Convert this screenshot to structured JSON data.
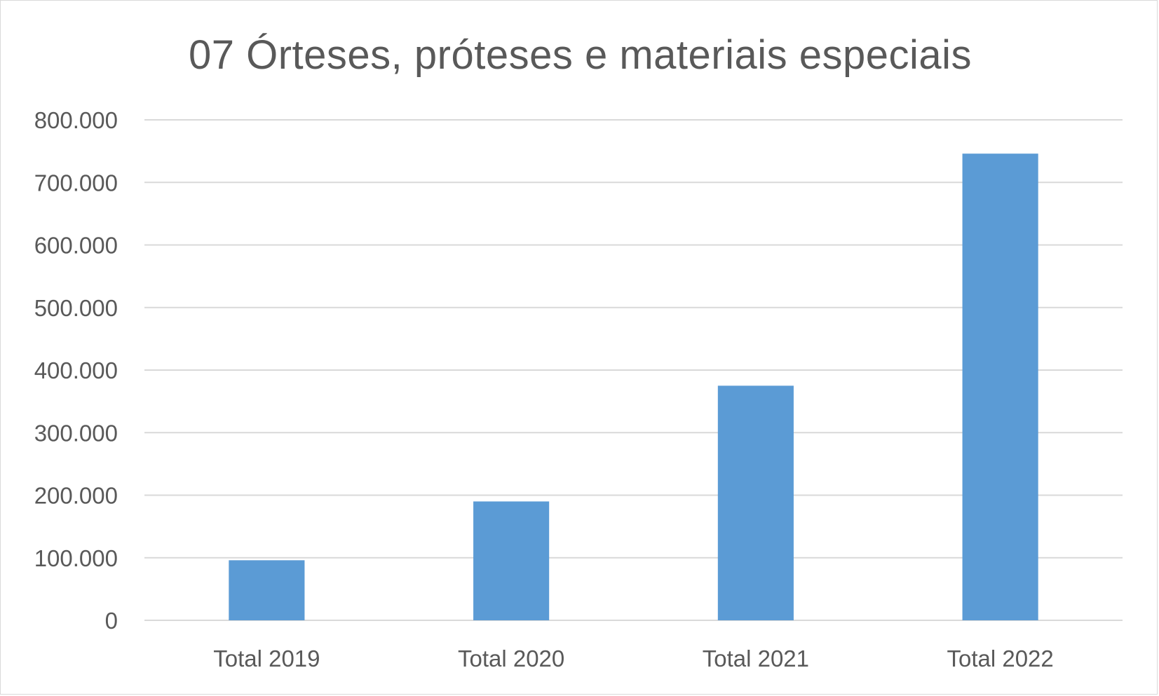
{
  "chart_data": {
    "type": "bar",
    "title": "07 Órteses, próteses e materiais especiais",
    "xlabel": "",
    "ylabel": "",
    "categories": [
      "Total 2019",
      "Total 2020",
      "Total 2021",
      "Total 2022"
    ],
    "values": [
      96000,
      190000,
      375000,
      746000
    ],
    "ylim": [
      0,
      800000
    ],
    "yticks": [
      0,
      100000,
      200000,
      300000,
      400000,
      500000,
      600000,
      700000,
      800000
    ],
    "ytick_labels": [
      "0",
      "100.000",
      "200.000",
      "300.000",
      "400.000",
      "500.000",
      "600.000",
      "700.000",
      "800.000"
    ],
    "grid": true,
    "legend": "none",
    "colors": {
      "bar": "#5b9bd5",
      "grid": "#d9d9d9",
      "text": "#595959"
    }
  }
}
